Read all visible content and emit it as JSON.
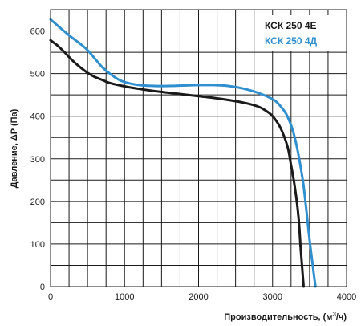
{
  "chart_data": {
    "type": "line",
    "title": "",
    "xlabel": "Производительность, (м",
    "xlabel_sup": "3",
    "xlabel_tail": "/ч)",
    "ylabel": "Давление, ΔP (Па)",
    "xlim": [
      0,
      4000
    ],
    "ylim": [
      0,
      650
    ],
    "grid": true,
    "x_ticks": [
      0,
      1000,
      2000,
      3000,
      4000
    ],
    "x_tick_labels": [
      "0",
      "1000",
      "2000",
      "3000",
      "4000"
    ],
    "y_ticks": [
      0,
      100,
      200,
      300,
      400,
      500,
      600
    ],
    "y_tick_labels": [
      "0",
      "100",
      "200",
      "300",
      "400",
      "500",
      "600"
    ],
    "legend_position": "top-right",
    "series": [
      {
        "name": "КСК 250 4Е",
        "color": "#1a1a1a",
        "points": [
          [
            0,
            578
          ],
          [
            100,
            565
          ],
          [
            200,
            548
          ],
          [
            300,
            530
          ],
          [
            400,
            515
          ],
          [
            500,
            502
          ],
          [
            600,
            492
          ],
          [
            700,
            485
          ],
          [
            800,
            478
          ],
          [
            1000,
            470
          ],
          [
            1200,
            464
          ],
          [
            1400,
            459
          ],
          [
            1600,
            455
          ],
          [
            1800,
            451
          ],
          [
            2000,
            447
          ],
          [
            2200,
            443
          ],
          [
            2400,
            438
          ],
          [
            2600,
            432
          ],
          [
            2800,
            423
          ],
          [
            2900,
            414
          ],
          [
            3000,
            400
          ],
          [
            3100,
            375
          ],
          [
            3200,
            330
          ],
          [
            3250,
            285
          ],
          [
            3300,
            235
          ],
          [
            3350,
            165
          ],
          [
            3380,
            90
          ],
          [
            3420,
            0
          ]
        ]
      },
      {
        "name": "КСК 250 4Д",
        "color": "#2f8fcf",
        "points": [
          [
            0,
            627
          ],
          [
            100,
            612
          ],
          [
            200,
            597
          ],
          [
            300,
            583
          ],
          [
            400,
            570
          ],
          [
            500,
            555
          ],
          [
            600,
            535
          ],
          [
            700,
            515
          ],
          [
            800,
            500
          ],
          [
            900,
            488
          ],
          [
            1000,
            480
          ],
          [
            1200,
            473
          ],
          [
            1400,
            471
          ],
          [
            1600,
            471
          ],
          [
            1800,
            472
          ],
          [
            2000,
            473
          ],
          [
            2200,
            473
          ],
          [
            2400,
            471
          ],
          [
            2600,
            465
          ],
          [
            2800,
            455
          ],
          [
            3000,
            440
          ],
          [
            3100,
            425
          ],
          [
            3200,
            400
          ],
          [
            3300,
            350
          ],
          [
            3400,
            260
          ],
          [
            3450,
            190
          ],
          [
            3500,
            110
          ],
          [
            3550,
            40
          ],
          [
            3580,
            0
          ]
        ]
      }
    ]
  }
}
